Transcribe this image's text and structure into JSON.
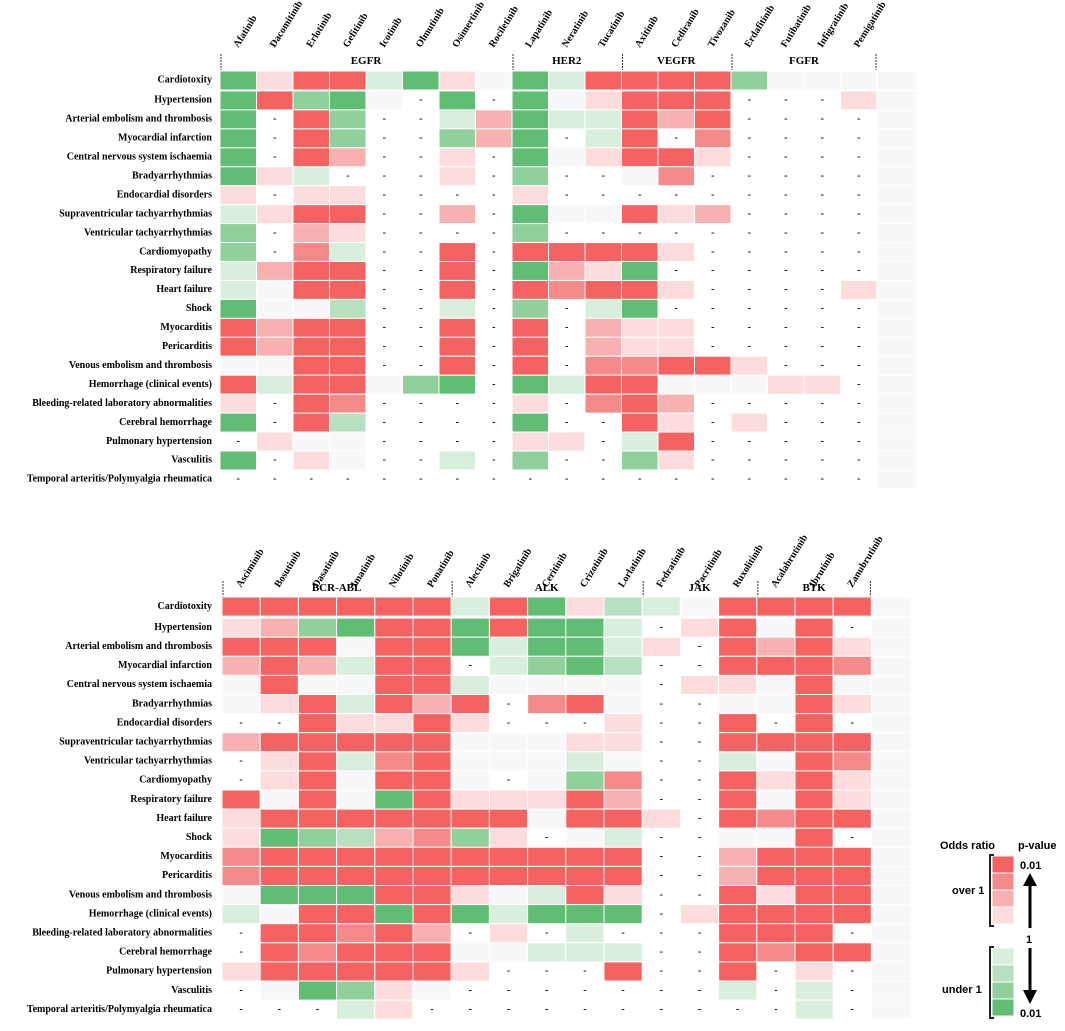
{
  "chart_data": [
    {
      "type": "heatmap",
      "panel": "top",
      "columns": [
        "Afatinib",
        "Dacomitinib",
        "Erlotinib",
        "Gefitinib",
        "Icotinib",
        "Olmutinib",
        "Osimertinib",
        "Rociletinib",
        "Lapatinib",
        "Neratinib",
        "Tucatinib",
        "Axitinib",
        "Cediranib",
        "Tivozanib",
        "Erdafitinib",
        "Futibatinib",
        "Infigratinib",
        "Pemigatinib"
      ],
      "groups": [
        {
          "label": "EGFR",
          "start": 0,
          "end": 7
        },
        {
          "label": "HER2",
          "start": 8,
          "end": 10
        },
        {
          "label": "VEGFR",
          "start": 11,
          "end": 13
        },
        {
          "label": "FGFR",
          "start": 14,
          "end": 17
        }
      ],
      "rows": [
        "Cardiotoxity",
        "Hypertension",
        "Arterial embolism and thrombosis",
        "Myocardial infarction",
        "Central nervous system ischaemia",
        "Bradyarrhythmias",
        "Endocardial disorders",
        "Supraventricular tachyarrhythmias",
        "Ventricular tachyarrhythmias",
        "Cardiomyopathy",
        "Respiratory failure",
        "Heart failure",
        "Shock",
        "Myocarditis",
        "Pericarditis",
        "Venous embolism and thrombosis",
        "Hemorrhage (clinical events)",
        "Bleeding-related laboratory abnormalities",
        "Cerebral hemorrhage",
        "Pulmonary hypertension",
        "Vasculitis",
        "Temporal arteritis/Polymyalgia rheumatica"
      ],
      "values": [
        [
          "G4",
          "R1",
          "R4",
          "R4",
          "G1",
          "G4",
          "R1",
          "0",
          "G4",
          "G1",
          "R4",
          "R4",
          "R4",
          "R4",
          "G3",
          "0",
          "0",
          "0"
        ],
        [
          "G4",
          "R4",
          "G3",
          "G4",
          "0",
          "-",
          "G4",
          "-",
          "G4",
          "0",
          "R1",
          "R4",
          "R4",
          "R4",
          "-",
          "-",
          "-",
          "R1"
        ],
        [
          "G4",
          "-",
          "R4",
          "G3",
          "-",
          "-",
          "G1",
          "R2",
          "G4",
          "G1",
          "G1",
          "R4",
          "R2",
          "R4",
          "-",
          "-",
          "-",
          "-"
        ],
        [
          "G4",
          "-",
          "R4",
          "G3",
          "-",
          "-",
          "G3",
          "R2",
          "G4",
          "-",
          "G1",
          "R4",
          "-",
          "R3",
          "-",
          "-",
          "-",
          "-"
        ],
        [
          "G4",
          "-",
          "R4",
          "R2",
          "-",
          "-",
          "R1",
          "-",
          "G4",
          "0",
          "R1",
          "R4",
          "R4",
          "R1",
          "-",
          "-",
          "-",
          "-"
        ],
        [
          "G4",
          "R1",
          "G1",
          "-",
          "-",
          "-",
          "R1",
          "-",
          "G3",
          "-",
          "-",
          "0",
          "R3",
          "-",
          "-",
          "-",
          "-",
          "-"
        ],
        [
          "R1",
          "-",
          "R1",
          "R1",
          "-",
          "-",
          "-",
          "-",
          "R1",
          "-",
          "-",
          "-",
          "-",
          "-",
          "-",
          "-",
          "-",
          "-"
        ],
        [
          "G1",
          "R1",
          "R4",
          "R4",
          "-",
          "-",
          "R2",
          "-",
          "G4",
          "0",
          "0",
          "R4",
          "R1",
          "R2",
          "-",
          "-",
          "-",
          "-"
        ],
        [
          "G3",
          "-",
          "R2",
          "R1",
          "-",
          "-",
          "-",
          "-",
          "G3",
          "-",
          "-",
          "-",
          "-",
          "-",
          "-",
          "-",
          "-",
          "-"
        ],
        [
          "G3",
          "-",
          "R3",
          "G1",
          "-",
          "-",
          "R4",
          "-",
          "R4",
          "R4",
          "R4",
          "R4",
          "R1",
          "-",
          "-",
          "-",
          "-",
          "-"
        ],
        [
          "G1",
          "R2",
          "R4",
          "R4",
          "-",
          "-",
          "R4",
          "-",
          "G4",
          "R2",
          "R1",
          "G4",
          "-",
          "-",
          "-",
          "-",
          "-",
          "-"
        ],
        [
          "G1",
          "0",
          "R4",
          "R4",
          "-",
          "-",
          "R4",
          "-",
          "R4",
          "R3",
          "R4",
          "R4",
          "R1",
          "-",
          "-",
          "-",
          "-",
          "R1"
        ],
        [
          "G4",
          "0",
          "0",
          "G2",
          "-",
          "-",
          "G1",
          "-",
          "G3",
          "-",
          "G1",
          "G4",
          "-",
          "-",
          "-",
          "-",
          "-",
          "-"
        ],
        [
          "R4",
          "R2",
          "R4",
          "R4",
          "-",
          "-",
          "R4",
          "-",
          "R4",
          "-",
          "R2",
          "R1",
          "R1",
          "-",
          "-",
          "-",
          "-",
          "-"
        ],
        [
          "R4",
          "R2",
          "R4",
          "R4",
          "-",
          "-",
          "R4",
          "-",
          "R4",
          "-",
          "R2",
          "R1",
          "R1",
          "-",
          "-",
          "-",
          "-",
          "-"
        ],
        [
          "0",
          "0",
          "R4",
          "R4",
          "-",
          "-",
          "R4",
          "-",
          "R4",
          "-",
          "R3",
          "R3",
          "R4",
          "R4",
          "R1",
          "-",
          "-",
          "-"
        ],
        [
          "R4",
          "G1",
          "R4",
          "R4",
          "0",
          "G3",
          "G4",
          "-",
          "G4",
          "G1",
          "R4",
          "R4",
          "0",
          "0",
          "0",
          "R1",
          "R1",
          "-"
        ],
        [
          "R1",
          "-",
          "R4",
          "R3",
          "-",
          "-",
          "-",
          "-",
          "R1",
          "-",
          "R3",
          "R4",
          "R2",
          "-",
          "-",
          "-",
          "-",
          "-"
        ],
        [
          "G4",
          "-",
          "R4",
          "G2",
          "-",
          "-",
          "-",
          "-",
          "G4",
          "-",
          "-",
          "R4",
          "R1",
          "-",
          "R1",
          "-",
          "-",
          "-"
        ],
        [
          "-",
          "R1",
          "0",
          "0",
          "-",
          "-",
          "-",
          "-",
          "R1",
          "R1",
          "-",
          "G1",
          "R4",
          "-",
          "-",
          "-",
          "-",
          "-"
        ],
        [
          "G4",
          "-",
          "R1",
          "0",
          "-",
          "-",
          "G1",
          "-",
          "G3",
          "-",
          "-",
          "G3",
          "R1",
          "-",
          "-",
          "-",
          "-",
          "-"
        ],
        [
          "-",
          "-",
          "-",
          "-",
          "-",
          "-",
          "-",
          "-",
          "-",
          "-",
          "-",
          "-",
          "-",
          "-",
          "-",
          "-",
          "-",
          "-"
        ]
      ]
    },
    {
      "type": "heatmap",
      "panel": "bottom",
      "columns": [
        "Asciminib",
        "Bosutinib",
        "Dasatinib",
        "Imatinib",
        "Nilotinib",
        "Ponatinib",
        "Alectinib",
        "Brigatinib",
        "Ceritinib",
        "Crizotinib",
        "Lorlatinib",
        "Fedratinib",
        "Pacritinib",
        "Ruxolitinib",
        "Acalabrutinib",
        "Ibrutinib",
        "Zanubrutinib"
      ],
      "groups": [
        {
          "label": "BCR-ABL",
          "start": 0,
          "end": 5
        },
        {
          "label": "ALK",
          "start": 6,
          "end": 10
        },
        {
          "label": "JAK",
          "start": 11,
          "end": 13
        },
        {
          "label": "BTK",
          "start": 14,
          "end": 16
        }
      ],
      "rows": [
        "Cardiotoxity",
        "Hypertension",
        "Arterial embolism and thrombosis",
        "Myocardial infarction",
        "Central nervous system ischaemia",
        "Bradyarrhythmias",
        "Endocardial disorders",
        "Supraventricular tachyarrhythmias",
        "Ventricular tachyarrhythmias",
        "Cardiomyopathy",
        "Respiratory failure",
        "Heart failure",
        "Shock",
        "Myocarditis",
        "Pericarditis",
        "Venous embolism and thrombosis",
        "Hemorrhage (clinical events)",
        "Bleeding-related laboratory abnormalities",
        "Cerebral hemorrhage",
        "Pulmonary hypertension",
        "Vasculitis",
        "Temporal arteritis/Polymyalgia rheumatica"
      ],
      "values": [
        [
          "R4",
          "R4",
          "R4",
          "R4",
          "R4",
          "R4",
          "G1",
          "R4",
          "G4",
          "R1",
          "G2",
          "G1",
          "0",
          "R4",
          "R4",
          "R4",
          "R4"
        ],
        [
          "R1",
          "R2",
          "G3",
          "G4",
          "R4",
          "R4",
          "G4",
          "R4",
          "G4",
          "G4",
          "G1",
          "-",
          "R1",
          "R4",
          "0",
          "R4",
          "-"
        ],
        [
          "R4",
          "R4",
          "R4",
          "0",
          "R4",
          "R4",
          "G4",
          "G1",
          "G4",
          "G4",
          "G1",
          "R1",
          "-",
          "R4",
          "R2",
          "R4",
          "R1"
        ],
        [
          "R2",
          "R4",
          "R2",
          "G1",
          "R4",
          "R4",
          "-",
          "G1",
          "G3",
          "G4",
          "G2",
          "-",
          "-",
          "R4",
          "R4",
          "R4",
          "R3"
        ],
        [
          "0",
          "R4",
          "0",
          "0",
          "R4",
          "R4",
          "G1",
          "0",
          "0",
          "0",
          "0",
          "-",
          "R1",
          "R1",
          "0",
          "R4",
          "0"
        ],
        [
          "0",
          "R1",
          "R4",
          "G1",
          "R4",
          "R2",
          "R4",
          "-",
          "R3",
          "R4",
          "0",
          "-",
          "-",
          "0",
          "0",
          "R4",
          "R1"
        ],
        [
          "-",
          "-",
          "R4",
          "R1",
          "R1",
          "R4",
          "R1",
          "-",
          "-",
          "-",
          "R1",
          "-",
          "-",
          "R4",
          "-",
          "R4",
          "-"
        ],
        [
          "R2",
          "R4",
          "R4",
          "R4",
          "R4",
          "R4",
          "0",
          "0",
          "0",
          "R1",
          "R1",
          "-",
          "-",
          "R4",
          "R4",
          "R4",
          "R4"
        ],
        [
          "-",
          "R1",
          "R4",
          "G1",
          "R3",
          "R4",
          "0",
          "0",
          "0",
          "G1",
          "0",
          "-",
          "-",
          "G1",
          "0",
          "R4",
          "R3"
        ],
        [
          "-",
          "R1",
          "R4",
          "0",
          "R4",
          "R4",
          "0",
          "-",
          "0",
          "G3",
          "R3",
          "-",
          "-",
          "R4",
          "R1",
          "R4",
          "R1"
        ],
        [
          "R4",
          "0",
          "R4",
          "0",
          "G4",
          "R4",
          "R1",
          "R1",
          "R1",
          "R4",
          "R2",
          "-",
          "-",
          "R4",
          "0",
          "R4",
          "R1"
        ],
        [
          "R1",
          "R4",
          "R4",
          "R4",
          "R4",
          "R4",
          "R4",
          "R4",
          "0",
          "R4",
          "R4",
          "R1",
          "-",
          "R4",
          "R3",
          "R4",
          "R4"
        ],
        [
          "R1",
          "G4",
          "G3",
          "G2",
          "R2",
          "R3",
          "G3",
          "R1",
          "-",
          "0",
          "G1",
          "-",
          "-",
          "0",
          "0",
          "R4",
          "-"
        ],
        [
          "R3",
          "R4",
          "R4",
          "R4",
          "R4",
          "R4",
          "R4",
          "R4",
          "R4",
          "R4",
          "R4",
          "-",
          "-",
          "R2",
          "R4",
          "R4",
          "R4"
        ],
        [
          "R3",
          "R4",
          "R4",
          "R4",
          "R4",
          "R4",
          "R4",
          "R4",
          "R4",
          "R4",
          "R4",
          "-",
          "-",
          "R2",
          "R4",
          "R4",
          "R4"
        ],
        [
          "0",
          "G4",
          "G4",
          "G4",
          "R4",
          "R4",
          "R1",
          "0",
          "G1",
          "R4",
          "R1",
          "-",
          "-",
          "R4",
          "R1",
          "R4",
          "R4"
        ],
        [
          "G1",
          "0",
          "R4",
          "R4",
          "G4",
          "R4",
          "G4",
          "G1",
          "G4",
          "G4",
          "G4",
          "-",
          "R1",
          "R4",
          "R4",
          "R4",
          "R4"
        ],
        [
          "-",
          "R4",
          "R4",
          "R3",
          "R4",
          "R2",
          "-",
          "R1",
          "-",
          "G1",
          "-",
          "-",
          "-",
          "R4",
          "R4",
          "R4",
          "-"
        ],
        [
          "-",
          "R4",
          "R3",
          "R4",
          "R4",
          "R4",
          "0",
          "0",
          "G1",
          "G1",
          "G1",
          "-",
          "-",
          "R4",
          "R3",
          "R4",
          "R4"
        ],
        [
          "R1",
          "R4",
          "R4",
          "R4",
          "R4",
          "R4",
          "R1",
          "-",
          "-",
          "-",
          "R4",
          "-",
          "-",
          "R4",
          "-",
          "R1",
          "-"
        ],
        [
          "-",
          "0",
          "G4",
          "G3",
          "R1",
          "0",
          "-",
          "-",
          "-",
          "-",
          "-",
          "-",
          "-",
          "G1",
          "-",
          "G1",
          "-"
        ],
        [
          "-",
          "-",
          "-",
          "G1",
          "R1",
          "-",
          "-",
          "-",
          "-",
          "-",
          "-",
          "-",
          "-",
          "-",
          "-",
          "G1",
          "-"
        ]
      ]
    }
  ],
  "legend": {
    "odds_title": "Odds ratio",
    "p_title": "p-value",
    "over_label": "over 1",
    "under_label": "under 1",
    "top_p": "0.01",
    "mid_value": "1",
    "bottom_p": "0.01"
  },
  "colors": {
    "R4": "#f46262",
    "R3": "#f58a8a",
    "R2": "#f8b1b1",
    "R1": "#fcdcdc",
    "G4": "#5fbd74",
    "G3": "#8fd09d",
    "G2": "#b6e0bf",
    "G1": "#d9efdd",
    "0": "#f8f8fa",
    "missing_mark": "-"
  }
}
